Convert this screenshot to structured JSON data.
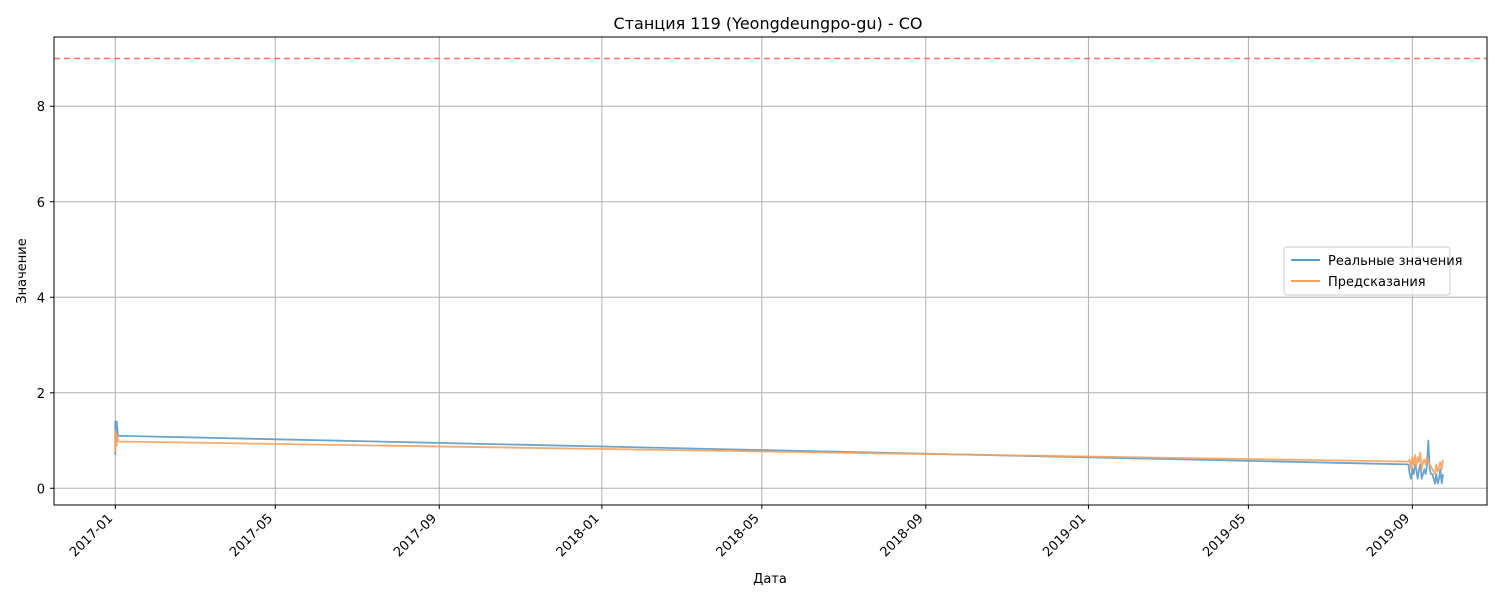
{
  "chart_data": {
    "type": "line",
    "title": "Станция 119 (Yeongdeungpo-gu) - CO",
    "xlabel": "Дата",
    "ylabel": "Значение",
    "xlim": [
      "2016-11-16",
      "2019-10-27"
    ],
    "ylim": [
      -0.35,
      9.45
    ],
    "grid": true,
    "legend_position": "center-right",
    "x_ticks": [
      "2017-01",
      "2017-05",
      "2017-09",
      "2018-01",
      "2018-05",
      "2018-09",
      "2019-01",
      "2019-05",
      "2019-09"
    ],
    "y_ticks": [
      "0",
      "2",
      "4",
      "6",
      "8"
    ],
    "threshold": {
      "value": 9,
      "color": "#ff6b6b"
    },
    "series": [
      {
        "name": "Реальные значения",
        "color": "#5b9bc8",
        "x": [
          "2017-01-01",
          "2017-01-01",
          "2017-01-02",
          "2017-01-02",
          "2017-01-03",
          "2019-08-29",
          "2019-08-30",
          "2019-08-31",
          "2019-09-01",
          "2019-09-02",
          "2019-09-03",
          "2019-09-04",
          "2019-09-05",
          "2019-09-06",
          "2019-09-07",
          "2019-09-08",
          "2019-09-09",
          "2019-09-10",
          "2019-09-11",
          "2019-09-12",
          "2019-09-13",
          "2019-09-14",
          "2019-09-15",
          "2019-09-16",
          "2019-09-17",
          "2019-09-18",
          "2019-09-19",
          "2019-09-20",
          "2019-09-21",
          "2019-09-22",
          "2019-09-23",
          "2019-09-24"
        ],
        "y": [
          0.7,
          1.4,
          1.0,
          1.4,
          1.1,
          0.5,
          0.3,
          0.2,
          0.4,
          0.3,
          0.5,
          0.4,
          0.2,
          0.4,
          0.5,
          0.2,
          0.3,
          0.4,
          0.3,
          0.5,
          1.0,
          0.4,
          0.3,
          0.3,
          0.2,
          0.1,
          0.3,
          0.1,
          0.2,
          0.4,
          0.1,
          0.3
        ]
      },
      {
        "name": "Предсказания",
        "color": "#f5a25d",
        "x": [
          "2017-01-01",
          "2017-01-01",
          "2017-01-02",
          "2017-01-02",
          "2017-01-03",
          "2019-08-29",
          "2019-08-30",
          "2019-08-31",
          "2019-09-01",
          "2019-09-02",
          "2019-09-03",
          "2019-09-04",
          "2019-09-05",
          "2019-09-06",
          "2019-09-07",
          "2019-09-08",
          "2019-09-09",
          "2019-09-10",
          "2019-09-11",
          "2019-09-12",
          "2019-09-13",
          "2019-09-14",
          "2019-09-15",
          "2019-09-16",
          "2019-09-17",
          "2019-09-18",
          "2019-09-19",
          "2019-09-20",
          "2019-09-21",
          "2019-09-22",
          "2019-09-23",
          "2019-09-24"
        ],
        "y": [
          0.75,
          1.2,
          0.9,
          1.15,
          0.98,
          0.56,
          0.6,
          0.4,
          0.65,
          0.5,
          0.7,
          0.45,
          0.65,
          0.55,
          0.75,
          0.4,
          0.55,
          0.6,
          0.5,
          0.65,
          0.55,
          0.5,
          0.45,
          0.4,
          0.35,
          0.3,
          0.5,
          0.35,
          0.45,
          0.55,
          0.4,
          0.6
        ]
      }
    ]
  }
}
